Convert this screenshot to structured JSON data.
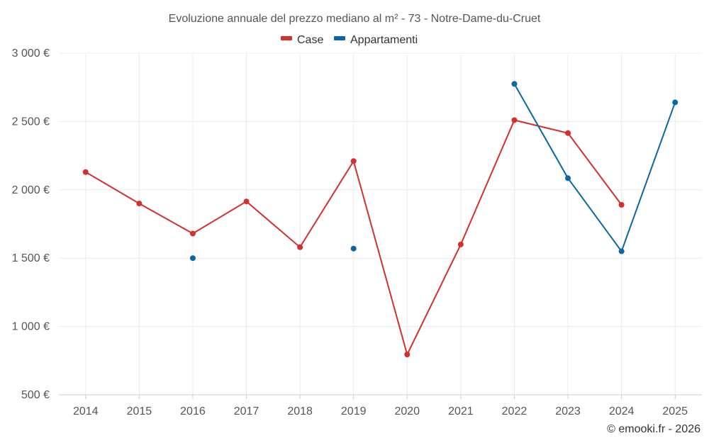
{
  "chart_data": {
    "type": "line",
    "title": "Evoluzione annuale del prezzo mediano al m² - 73 - Notre-Dame-du-Cruet",
    "categories": [
      "2014",
      "2015",
      "2016",
      "2017",
      "2018",
      "2019",
      "2020",
      "2021",
      "2022",
      "2023",
      "2024",
      "2025"
    ],
    "series": [
      {
        "name": "Case",
        "color": "#d32f2f",
        "values": [
          2130,
          1900,
          1680,
          1915,
          1580,
          2210,
          795,
          1600,
          2510,
          2415,
          1890,
          null
        ]
      },
      {
        "name": "Appartamenti",
        "color": "#0a67a3",
        "values": [
          null,
          null,
          1500,
          null,
          null,
          1570,
          null,
          null,
          2775,
          2085,
          1550,
          2640
        ]
      }
    ],
    "ylim": [
      500,
      3000
    ],
    "yticks": [
      500,
      1000,
      1500,
      2000,
      2500,
      3000
    ],
    "ytick_labels": [
      "500 €",
      "1 000 €",
      "1 500 €",
      "2 000 €",
      "2 500 €",
      "3 000 €"
    ],
    "grid": true,
    "legend_position": "top-center",
    "xlabel": "",
    "ylabel": ""
  },
  "credit": "© emooki.fr - 2026"
}
